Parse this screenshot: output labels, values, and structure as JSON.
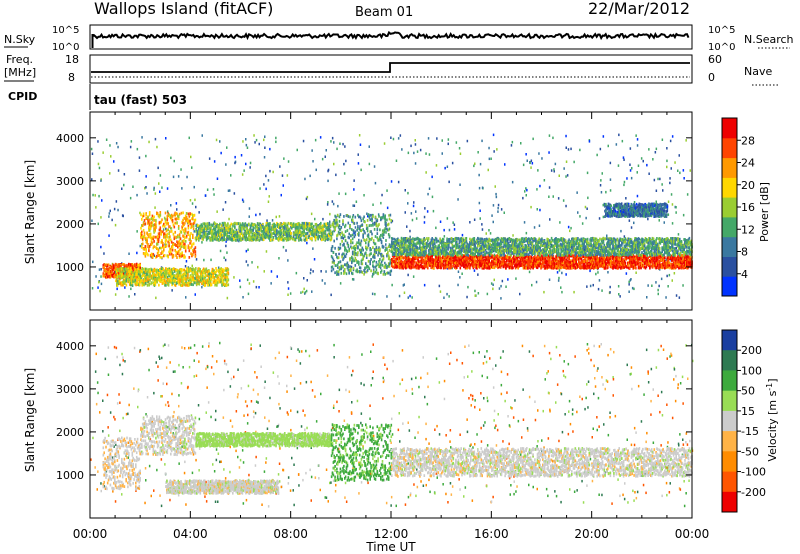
{
  "header": {
    "station": "Wallops Island (fitACF)",
    "beam": "Beam 01",
    "date": "22/Mar/2012"
  },
  "strips": {
    "nsky_label": "N.Sky",
    "nsky_tick_top": "10^5",
    "nsky_tick_bottom": "10^0",
    "nsearch_label": "N.Search",
    "nsearch_tick_top": "10^5",
    "nsearch_tick_bottom": "10^0",
    "freq_label": "Freq.",
    "freq_unit": "[MHz]",
    "freq_tick_top": "18",
    "freq_tick_bottom": "8",
    "nave_label": "Nave",
    "nave_tick_top": "60",
    "nave_tick_bottom": "0",
    "cpid_label": "CPID",
    "cpid_text": "tau (fast) 503"
  },
  "chart_data": [
    {
      "type": "heatmap",
      "title": "",
      "ylabel": "Slant Range [km]",
      "xlabel": "Time UT",
      "xlim": [
        "00:00",
        "24:00"
      ],
      "ylim": [
        0,
        4600
      ],
      "x_ticks": [
        "00:00",
        "04:00",
        "08:00",
        "12:00",
        "16:00",
        "20:00",
        "00:00"
      ],
      "y_ticks": [
        1000,
        2000,
        3000,
        4000
      ],
      "colorbar": {
        "label": "Power [dB]",
        "ticks": [
          4,
          8,
          12,
          16,
          20,
          24,
          28
        ],
        "range": [
          0,
          32
        ],
        "colors": [
          "#0033ff",
          "#2a50a0",
          "#3a78a0",
          "#44a868",
          "#9acd32",
          "#ffd700",
          "#ff9900",
          "#ff4400",
          "#ee0000"
        ]
      },
      "bands": [
        {
          "t0": 0.5,
          "t1": 2.0,
          "r0": 780,
          "r1": 1100,
          "power": 26
        },
        {
          "t0": 2.0,
          "t1": 4.2,
          "r0": 1250,
          "r1": 2300,
          "power": 22
        },
        {
          "t0": 1.0,
          "t1": 5.5,
          "r0": 600,
          "r1": 1000,
          "power": 18
        },
        {
          "t0": 4.2,
          "t1": 9.6,
          "r0": 1650,
          "r1": 2050,
          "power": 14
        },
        {
          "t0": 9.6,
          "t1": 12.0,
          "r0": 850,
          "r1": 2250,
          "power": 12
        },
        {
          "t0": 12.0,
          "t1": 24.0,
          "r0": 1000,
          "r1": 1300,
          "power": 28
        },
        {
          "t0": 12.0,
          "t1": 24.0,
          "r0": 1300,
          "r1": 1700,
          "power": 12
        },
        {
          "t0": 20.5,
          "t1": 23.0,
          "r0": 2200,
          "r1": 2500,
          "power": 8
        }
      ]
    },
    {
      "type": "heatmap",
      "title": "",
      "ylabel": "Slant Range [km]",
      "xlabel": "Time UT",
      "xlim": [
        "00:00",
        "24:00"
      ],
      "ylim": [
        0,
        4600
      ],
      "x_ticks": [
        "00:00",
        "04:00",
        "08:00",
        "12:00",
        "16:00",
        "20:00",
        "00:00"
      ],
      "y_ticks": [
        1000,
        2000,
        3000,
        4000
      ],
      "colorbar": {
        "label": "Velocity [m s^-1]",
        "ticks": [
          200,
          100,
          50,
          15,
          -15,
          -50,
          -100,
          -200
        ],
        "colors": [
          "#1a3fa0",
          "#2e7a52",
          "#3daa3d",
          "#99dd55",
          "#cccccc",
          "#ffb347",
          "#ff8c00",
          "#ff5500",
          "#ee0000"
        ]
      },
      "bands": [
        {
          "t0": 0.5,
          "t1": 2.0,
          "r0": 700,
          "r1": 1900,
          "velocity": -5
        },
        {
          "t0": 2.0,
          "t1": 4.2,
          "r0": 1500,
          "r1": 2400,
          "velocity": 0
        },
        {
          "t0": 4.2,
          "t1": 9.6,
          "r0": 1700,
          "r1": 2000,
          "velocity": 30
        },
        {
          "t0": 9.6,
          "t1": 12.0,
          "r0": 900,
          "r1": 2200,
          "velocity": 60
        },
        {
          "t0": 12.0,
          "t1": 24.0,
          "r0": 1000,
          "r1": 1650,
          "velocity": 0
        },
        {
          "t0": 3.0,
          "t1": 7.5,
          "r0": 600,
          "r1": 900,
          "velocity": 0
        }
      ]
    }
  ]
}
